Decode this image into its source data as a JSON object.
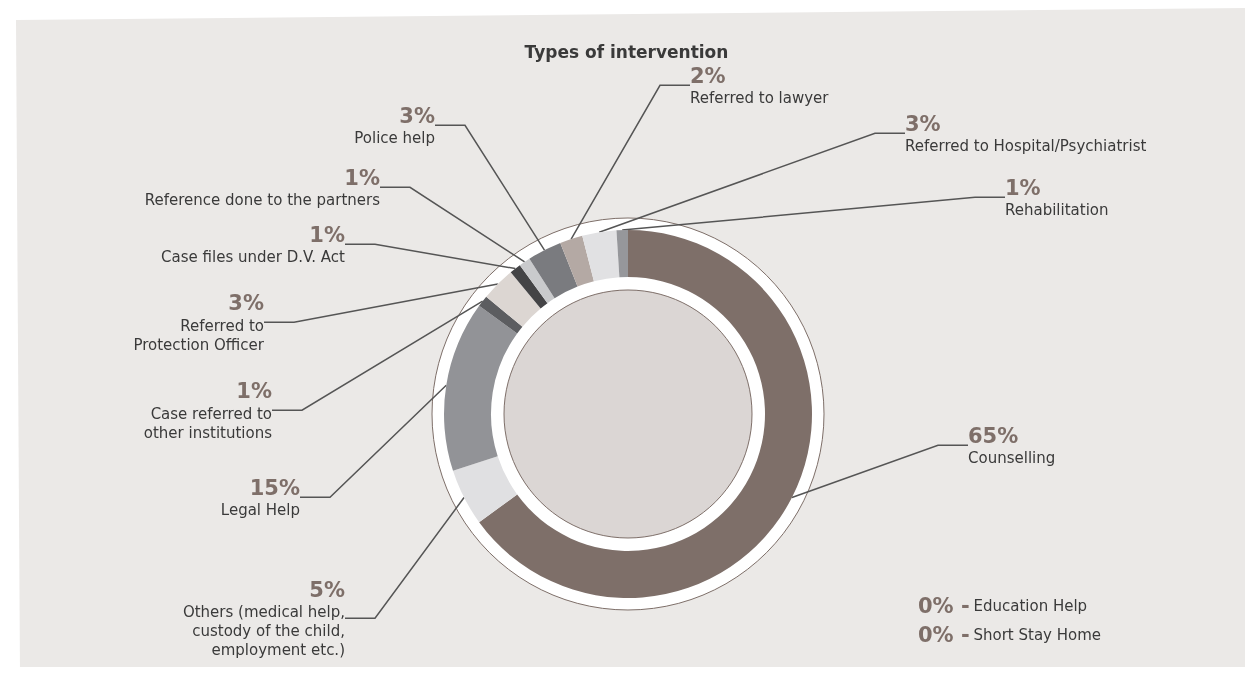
{
  "chart_data": {
    "type": "donut",
    "title": "Types of intervention",
    "categories": [
      "Counselling",
      "Others (medical help, custody of the child, employment etc.)",
      "Legal Help",
      "Case referred to other institutions",
      "Referred to Protection Officer",
      "Case files under D.V. Act",
      "Reference done to the partners",
      "Police help",
      "Referred to lawyer",
      "Referred to Hospital/Psychiatrist",
      "Rehabilitation",
      "Education Help",
      "Short Stay Home"
    ],
    "values": [
      65,
      5,
      15,
      1,
      3,
      1,
      1,
      3,
      2,
      3,
      1,
      0,
      0
    ],
    "colors": [
      "#7e6f69",
      "#e0e0e2",
      "#929397",
      "#5c5d60",
      "#dcd6d2",
      "#444446",
      "#c9cacc",
      "#7a7b7f",
      "#b4a9a4",
      "#e1e1e3",
      "#96979b",
      "#96979b",
      "#96979b"
    ],
    "value_labels": [
      "65%",
      "5%",
      "15%",
      "1%",
      "3%",
      "1%",
      "1%",
      "3%",
      "2%",
      "3%",
      "1%",
      "0% -",
      "0% -"
    ],
    "legend": false
  }
}
